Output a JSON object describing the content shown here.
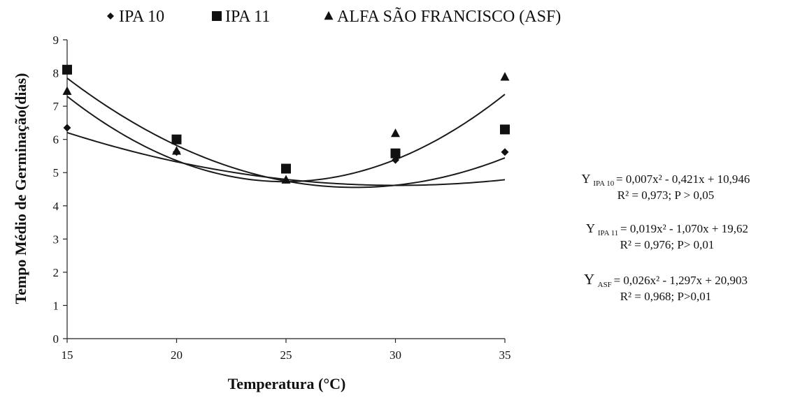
{
  "chart_data": {
    "type": "scatter",
    "title": "",
    "xlabel": "Temperatura (°C)",
    "ylabel": "Tempo Médio de Germinação(dias)",
    "x": [
      15,
      20,
      25,
      30,
      35
    ],
    "xticks": [
      15,
      20,
      25,
      30,
      35
    ],
    "yticks": [
      0,
      1,
      2,
      3,
      4,
      5,
      6,
      7,
      8,
      9
    ],
    "xlim": [
      15,
      35
    ],
    "ylim": [
      0,
      9
    ],
    "grid": false,
    "legend": {
      "position": "top"
    },
    "series": [
      {
        "name": "IPA 10",
        "marker": "diamond",
        "values": [
          6.35,
          5.62,
          5.15,
          5.38,
          5.62
        ],
        "fit": {
          "a": 0.007,
          "b": -0.421,
          "c": 10.946
        },
        "equation": {
          "prefix": "Y",
          "sub": "IPA 10",
          "formula": "= 0,007x² - 0,421x + 10,946",
          "stats": "R² = 0,973; P > 0,05"
        }
      },
      {
        "name": "IPA 11",
        "marker": "square",
        "values": [
          8.1,
          6.0,
          5.12,
          5.58,
          6.3
        ],
        "fit": {
          "a": 0.019,
          "b": -1.07,
          "c": 19.62
        },
        "equation": {
          "prefix": "Y",
          "sub": "IPA 11",
          "formula": "= 0,019x² - 1,070x + 19,62",
          "stats": "R² = 0,976; P> 0,01"
        }
      },
      {
        "name": "ALFA SÃO FRANCISCO (ASF)",
        "marker": "triangle",
        "values": [
          7.45,
          5.65,
          4.78,
          6.18,
          7.88
        ],
        "fit": {
          "a": 0.026,
          "b": -1.297,
          "c": 20.903
        },
        "equation": {
          "prefix": "Y",
          "sub": "ASF",
          "formula": "= 0,026x² - 1,297x + 20,903",
          "stats": "R² = 0,968; P>0,01"
        }
      }
    ],
    "colors": {
      "ink": "#111111",
      "axis": "#222222"
    }
  }
}
